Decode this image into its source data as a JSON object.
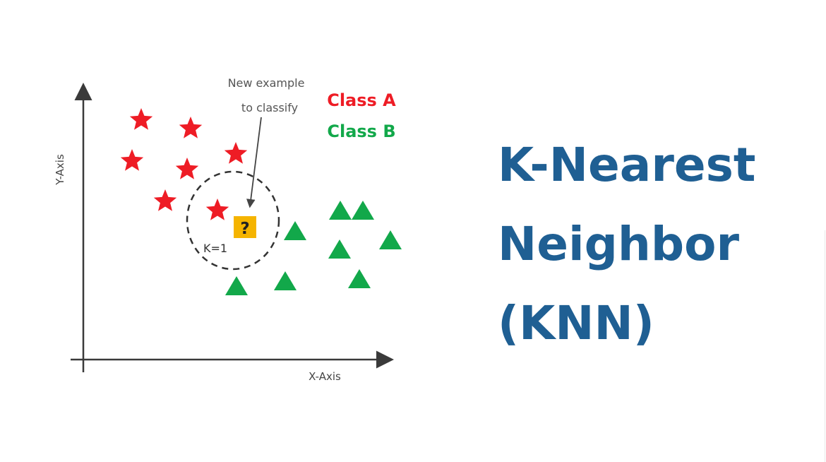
{
  "diagram": {
    "x_axis_label": "X-Axis",
    "y_axis_label": "Y-Axis",
    "annotation": [
      "New example",
      "to classify"
    ],
    "legend": [
      {
        "label": "Class A",
        "color": "#ee1c25",
        "marker": "star"
      },
      {
        "label": "Class B",
        "color": "#12a84a",
        "marker": "triangle"
      }
    ],
    "query_point": {
      "symbol": "?",
      "color": "#f5b400"
    },
    "k_label": "K=1"
  },
  "title": {
    "lines": [
      "K-Nearest",
      "Neighbor",
      "(KNN)"
    ],
    "color": "#1f5f93"
  }
}
